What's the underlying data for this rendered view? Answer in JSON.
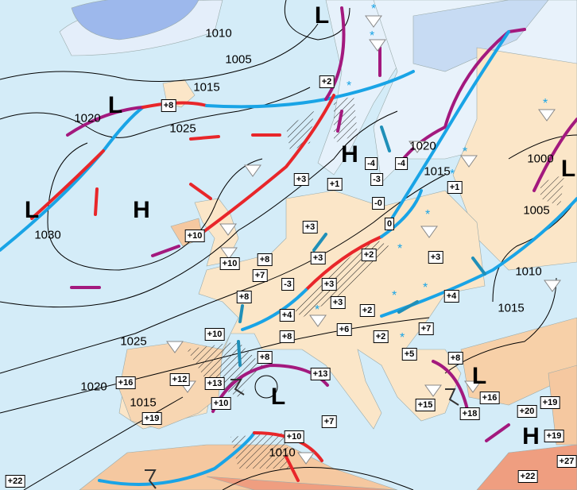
{
  "colors": {
    "sea": "#d4ecf8",
    "land": "#fbe6c8",
    "warm_land": "#f5c8a0",
    "hot_land": "#ef9e80",
    "cold": "#8fb0e8",
    "warm_front": "#e8262a",
    "cold_front": "#19a4e6",
    "occluded_front": "#a3197e",
    "isobar": "#000000"
  },
  "pressure_centers": [
    {
      "type": "L",
      "lat_label": "north"
    },
    {
      "type": "L"
    },
    {
      "type": "H"
    },
    {
      "type": "L"
    },
    {
      "type": "H"
    },
    {
      "type": "L"
    },
    {
      "type": "L"
    },
    {
      "type": "L"
    },
    {
      "type": "H"
    }
  ],
  "isobar_labels": [
    "1010",
    "1005",
    "1015",
    "1020",
    "1025",
    "1030",
    "1020",
    "1015",
    "1000",
    "1005",
    "1010",
    "1015",
    "1025",
    "1020",
    "1015",
    "1010"
  ],
  "temperatures": [
    "+2",
    "+8",
    "-4",
    "-4",
    "-3",
    "+3",
    "+1",
    "+1",
    "-0",
    "0",
    "+3",
    "+10",
    "+2",
    "+3",
    "+3",
    "+8",
    "+10",
    "+7",
    "-3",
    "+3",
    "+8",
    "+4",
    "+3",
    "+2",
    "+4",
    "+6",
    "+7",
    "+10",
    "+8",
    "+2",
    "+5",
    "+8",
    "+8",
    "+13",
    "+12",
    "+16",
    "+13",
    "+16",
    "+10",
    "+15",
    "+20",
    "+19",
    "+18",
    "+19",
    "+7",
    "+10",
    "+19",
    "+27",
    "+22",
    "+22"
  ],
  "legend_icons": [
    "shower-triangle-icon",
    "snow-asterisk-icon",
    "thunderstorm-icon",
    "wind-arrow-icon",
    "hatched-precipitation-area"
  ]
}
